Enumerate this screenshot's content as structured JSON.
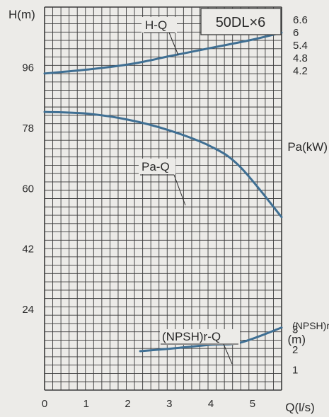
{
  "chart_data": {
    "type": "line",
    "model": "50DL×6",
    "x_axis": {
      "label": "Q(l/s)",
      "ticks": [
        "0",
        "1",
        "2",
        "3",
        "4",
        "5"
      ],
      "tick_values": [
        0,
        1,
        2,
        3,
        4,
        5
      ],
      "range": [
        0,
        5.7
      ]
    },
    "head_axis": {
      "label": "H(m)",
      "ticks": [
        "96",
        "78",
        "60",
        "42",
        "24"
      ],
      "tick_values": [
        96,
        78,
        60,
        42,
        24
      ],
      "range": [
        0,
        114
      ]
    },
    "power_axis": {
      "label": "Pa(kW)",
      "ticks": [
        "6.6",
        "6",
        "5.4",
        "4.8",
        "4.2"
      ],
      "tick_values": [
        6.6,
        6.0,
        5.4,
        4.8,
        4.2
      ],
      "range": [
        -10.8,
        7.2
      ]
    },
    "npsh_axis": {
      "label_line1": "(NPSH)r",
      "label_line2": "(m)",
      "ticks": [
        "3",
        "2",
        "1"
      ],
      "tick_values": [
        3,
        2,
        1
      ],
      "range": [
        0,
        19
      ]
    },
    "grid": true,
    "series": [
      {
        "name": "H-Q",
        "axis": "head",
        "x": [
          0,
          1,
          2,
          3,
          4,
          4.7,
          5.7
        ],
        "y": [
          82.8,
          82.3,
          80.5,
          77.3,
          72.5,
          66.5,
          51.5
        ]
      },
      {
        "name": "Pa-Q",
        "axis": "power",
        "x": [
          0,
          1,
          2,
          2.5,
          3,
          4,
          5,
          5.7
        ],
        "y": [
          4.08,
          4.26,
          4.5,
          4.68,
          4.89,
          5.28,
          5.67,
          6.0
        ]
      },
      {
        "name": "(NPSH)r-Q",
        "axis": "npsh",
        "x": [
          2.3,
          3,
          4,
          4.7,
          5.7
        ],
        "y": [
          1.93,
          2.05,
          2.25,
          2.35,
          3.1
        ]
      }
    ],
    "colors": {
      "curve": "#3f6f93",
      "grid": "#3a3a3a",
      "background": "#ecebe8"
    }
  }
}
